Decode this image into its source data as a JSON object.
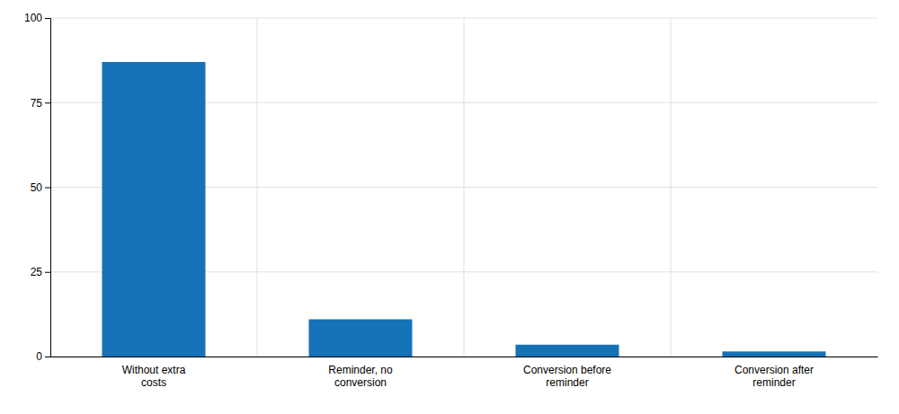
{
  "chart_data": {
    "type": "bar",
    "categories": [
      "Without extra\ncosts",
      "Reminder, no\nconversion",
      "Conversion before\nreminder",
      "Conversion after\nreminder"
    ],
    "values": [
      87.0,
      11.0,
      3.5,
      1.5
    ],
    "color": "#1572b6",
    "ylim": [
      0,
      100
    ],
    "yticks": [
      0,
      25,
      50,
      75,
      100
    ],
    "grid": true
  }
}
